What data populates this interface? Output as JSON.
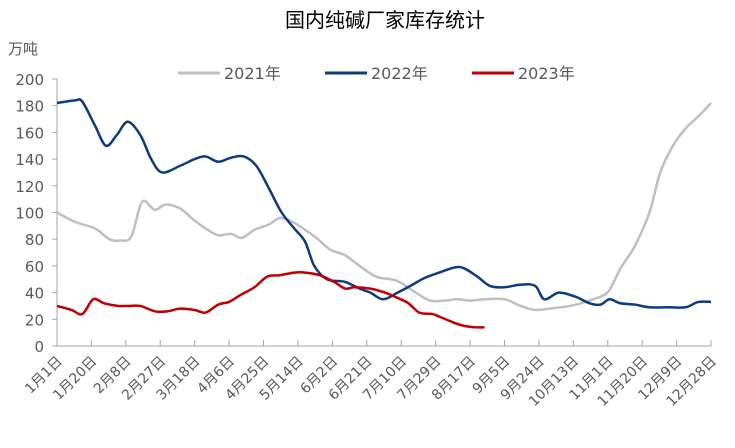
{
  "chart_data": {
    "type": "line",
    "title": "国内纯碱厂家库存统计",
    "ylabel": "万吨",
    "xlabel": "",
    "ylim": [
      0,
      200
    ],
    "yticks": [
      0,
      20,
      40,
      60,
      80,
      100,
      120,
      140,
      160,
      180,
      200
    ],
    "xlim": [
      "01-01",
      "12-28"
    ],
    "xtick_labels": [
      "1月1日",
      "1月20日",
      "2月8日",
      "2月27日",
      "3月18日",
      "4月6日",
      "4月25日",
      "5月14日",
      "6月2日",
      "6月21日",
      "7月10日",
      "7月29日",
      "8月17日",
      "9月5日",
      "9月24日",
      "10月13日",
      "11月1日",
      "11月20日",
      "12月9日",
      "12月28日"
    ],
    "xtick_dates": [
      "01-01",
      "01-20",
      "02-08",
      "02-27",
      "03-18",
      "04-06",
      "04-25",
      "05-14",
      "06-02",
      "06-21",
      "07-10",
      "07-29",
      "08-17",
      "09-05",
      "09-24",
      "10-13",
      "11-01",
      "11-20",
      "12-09",
      "12-28"
    ],
    "grid": false,
    "legend": "top",
    "series": [
      {
        "name": "2021年",
        "color": "#bfbfbf",
        "x": [
          "01-01",
          "01-11",
          "01-22",
          "01-30",
          "02-05",
          "02-11",
          "02-17",
          "02-24",
          "03-02",
          "03-10",
          "03-17",
          "03-24",
          "03-31",
          "04-07",
          "04-13",
          "04-20",
          "04-28",
          "05-04",
          "05-11",
          "05-18",
          "05-25",
          "06-01",
          "06-09",
          "06-17",
          "06-26",
          "07-04",
          "07-09",
          "07-18",
          "07-26",
          "08-03",
          "08-10",
          "08-17",
          "08-25",
          "09-05",
          "09-14",
          "09-22",
          "09-30",
          "10-11",
          "10-17",
          "10-28",
          "11-02",
          "11-08",
          "11-16",
          "11-24",
          "11-30",
          "12-07",
          "12-14",
          "12-21",
          "12-28"
        ],
        "y": [
          100,
          93,
          88,
          80,
          79,
          82,
          108,
          102,
          106,
          103,
          95,
          88,
          83,
          84,
          81,
          87,
          91,
          96,
          93,
          87,
          80,
          72,
          68,
          60,
          52,
          50,
          48,
          40,
          34,
          34,
          35,
          34,
          35,
          35,
          30,
          27,
          28,
          30,
          32,
          37,
          42,
          58,
          75,
          100,
          130,
          150,
          163,
          172,
          182
        ]
      },
      {
        "name": "2022年",
        "color": "#0e3b7d",
        "x": [
          "01-01",
          "01-11",
          "01-15",
          "01-22",
          "01-28",
          "02-03",
          "02-09",
          "02-16",
          "02-22",
          "02-28",
          "03-10",
          "03-18",
          "03-24",
          "03-31",
          "04-07",
          "04-14",
          "04-21",
          "04-28",
          "05-05",
          "05-12",
          "05-18",
          "05-23",
          "05-30",
          "06-09",
          "06-17",
          "06-23",
          "06-30",
          "07-08",
          "07-15",
          "07-23",
          "07-31",
          "08-09",
          "08-14",
          "08-21",
          "08-28",
          "09-05",
          "09-14",
          "09-22",
          "09-27",
          "10-05",
          "10-14",
          "10-22",
          "10-28",
          "11-02",
          "11-08",
          "11-16",
          "11-24",
          "12-05",
          "12-14",
          "12-21",
          "12-28"
        ],
        "y": [
          182,
          184,
          183,
          165,
          150,
          158,
          168,
          158,
          140,
          130,
          135,
          140,
          142,
          138,
          141,
          142,
          135,
          118,
          100,
          88,
          78,
          60,
          50,
          48,
          43,
          40,
          35,
          40,
          45,
          51,
          55,
          59,
          58,
          52,
          45,
          44,
          46,
          45,
          35,
          40,
          37,
          32,
          31,
          35,
          32,
          31,
          29,
          29,
          29,
          33,
          33
        ]
      },
      {
        "name": "2023年",
        "color": "#c00000",
        "x": [
          "01-01",
          "01-09",
          "01-15",
          "01-21",
          "01-27",
          "02-04",
          "02-10",
          "02-16",
          "02-24",
          "03-03",
          "03-10",
          "03-18",
          "03-24",
          "03-31",
          "04-06",
          "04-12",
          "04-20",
          "04-27",
          "05-04",
          "05-12",
          "05-18",
          "05-26",
          "06-03",
          "06-09",
          "06-14",
          "06-23",
          "07-01",
          "07-08",
          "07-14",
          "07-20",
          "07-27",
          "07-31",
          "08-09",
          "08-14",
          "08-20",
          "08-25"
        ],
        "y": [
          30,
          27,
          24,
          35,
          32,
          30,
          30,
          30,
          26,
          26,
          28,
          27,
          25,
          31,
          33,
          38,
          44,
          52,
          53,
          55,
          55,
          53,
          48,
          43,
          44,
          43,
          40,
          36,
          32,
          25,
          24,
          22,
          17,
          15,
          14,
          14
        ]
      }
    ]
  }
}
